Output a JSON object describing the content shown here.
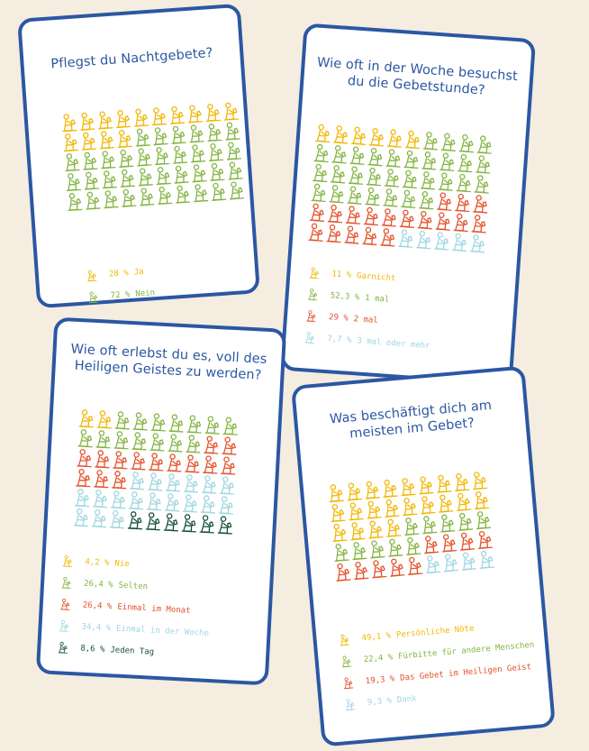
{
  "colors": {
    "ja": "#f2b705",
    "nein": "#84b541",
    "garnicht": "#f2b705",
    "einmal": "#84b541",
    "zweimal": "#e4522b",
    "dreimal": "#9fd6e0",
    "nie": "#f2b705",
    "selten": "#84b541",
    "monat": "#e4522b",
    "woche": "#9fd6e0",
    "tag": "#17513d",
    "border": "#2b57a3"
  },
  "chart_data": [
    {
      "type": "pictogram",
      "title": "Pflegst du Nachtgebete?",
      "series": [
        {
          "name": "Ja",
          "value": 28,
          "label": "28 %",
          "color": "#f2b705"
        },
        {
          "name": "Nein",
          "value": 72,
          "label": "72 %",
          "color": "#84b541"
        }
      ],
      "grid": {
        "cols": 10,
        "rows": 5,
        "counts": [
          14,
          36
        ]
      }
    },
    {
      "type": "pictogram",
      "title": "Wie oft in der Woche besuchst du die Gebetstunde?",
      "series": [
        {
          "name": "Garnicht",
          "value": 11,
          "label": "11 %",
          "color": "#f2b705"
        },
        {
          "name": "1 mal",
          "value": 52.3,
          "label": "52,3 %",
          "color": "#84b541"
        },
        {
          "name": "2 mal",
          "value": 29,
          "label": "29 %",
          "color": "#e4522b"
        },
        {
          "name": "3 mal oder mehr",
          "value": 7.7,
          "label": "7,7 %",
          "color": "#9fd6e0"
        }
      ],
      "grid": {
        "cols": 10,
        "rows": 6,
        "counts": [
          6,
          31,
          18,
          5
        ]
      }
    },
    {
      "type": "pictogram",
      "title": "Wie oft erlebst du es, voll des Heiligen Geistes zu werden?",
      "series": [
        {
          "name": "Nie",
          "value": 4.2,
          "label": "4,2 %",
          "color": "#f2b705"
        },
        {
          "name": "Selten",
          "value": 26.4,
          "label": "26,4 %",
          "color": "#84b541"
        },
        {
          "name": "Einmal im Monat",
          "value": 26.4,
          "label": "26,4 %",
          "color": "#e4522b"
        },
        {
          "name": "Einmal in der Woche",
          "value": 34.4,
          "label": "34,4 %",
          "color": "#9fd6e0"
        },
        {
          "name": "Jeden Tag",
          "value": 8.6,
          "label": "8,6 %",
          "color": "#17513d"
        }
      ],
      "grid": {
        "cols": 9,
        "rows": 6,
        "counts": [
          2,
          14,
          14,
          18,
          6
        ]
      }
    },
    {
      "type": "pictogram",
      "title": "Was beschäftigt dich am meisten im Gebet?",
      "series": [
        {
          "name": "Persönliche Nöte",
          "value": 49.1,
          "label": "49,1 %",
          "color": "#f2b705"
        },
        {
          "name": "Fürbitte für andere Menschen",
          "value": 22.4,
          "label": "22,4 %",
          "color": "#84b541"
        },
        {
          "name": "Das Gebet im Heiligen Geist",
          "value": 19.3,
          "label": "19,3 %",
          "color": "#e4522b"
        },
        {
          "name": "Dank",
          "value": 9.3,
          "label": "9,3 %",
          "color": "#9fd6e0"
        }
      ],
      "grid": {
        "cols": 9,
        "rows": 5,
        "counts": [
          22,
          10,
          9,
          4
        ]
      }
    }
  ]
}
